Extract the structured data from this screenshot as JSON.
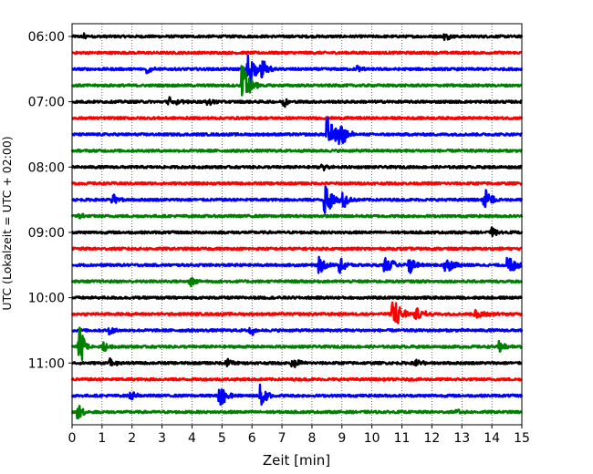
{
  "chart_data": {
    "type": "line",
    "title": "",
    "xlabel": "Zeit  [min]",
    "ylabel": "UTC (Lokalzeit = UTC + 02:00)",
    "xlim": [
      0,
      15
    ],
    "x_ticks": [
      0,
      1,
      2,
      3,
      4,
      5,
      6,
      7,
      8,
      9,
      10,
      11,
      12,
      13,
      14,
      15
    ],
    "grid": "vertical dotted lines at each minute",
    "row_minutes": 15,
    "y_tick_labels": [
      "06:00",
      "07:00",
      "08:00",
      "09:00",
      "10:00",
      "11:00"
    ],
    "color_cycle": [
      "#000000",
      "#ff0000",
      "#0000ff",
      "#008000"
    ],
    "rows": [
      {
        "start": "06:00",
        "color": "#000000",
        "events": [
          {
            "t": 0.45,
            "amp": 0.2,
            "dur": 0.2
          },
          {
            "t": 12.5,
            "amp": 0.2,
            "dur": 0.3
          }
        ]
      },
      {
        "start": "06:15",
        "color": "#ff0000",
        "events": []
      },
      {
        "start": "06:30",
        "color": "#0000ff",
        "events": [
          {
            "t": 2.5,
            "amp": 0.3,
            "dur": 0.4
          },
          {
            "t": 5.9,
            "amp": 1.2,
            "dur": 0.5
          },
          {
            "t": 6.4,
            "amp": 0.6,
            "dur": 0.4
          },
          {
            "t": 9.6,
            "amp": 0.2,
            "dur": 0.3
          }
        ]
      },
      {
        "start": "06:45",
        "color": "#008000",
        "events": [
          {
            "t": 5.75,
            "amp": 1.4,
            "dur": 0.5
          }
        ]
      },
      {
        "start": "07:00",
        "color": "#000000",
        "events": [
          {
            "t": 3.3,
            "amp": 0.3,
            "dur": 0.6
          },
          {
            "t": 7.1,
            "amp": 0.3,
            "dur": 0.3
          },
          {
            "t": 4.6,
            "amp": 0.2,
            "dur": 0.4
          }
        ]
      },
      {
        "start": "07:15",
        "color": "#ff0000",
        "events": []
      },
      {
        "start": "07:30",
        "color": "#0000ff",
        "events": [
          {
            "t": 8.55,
            "amp": 1.2,
            "dur": 0.6
          },
          {
            "t": 9.0,
            "amp": 0.6,
            "dur": 0.6
          }
        ]
      },
      {
        "start": "07:45",
        "color": "#008000",
        "events": []
      },
      {
        "start": "08:00",
        "color": "#000000",
        "events": [
          {
            "t": 8.4,
            "amp": 0.2,
            "dur": 0.5
          }
        ]
      },
      {
        "start": "08:15",
        "color": "#ff0000",
        "events": []
      },
      {
        "start": "08:30",
        "color": "#0000ff",
        "events": [
          {
            "t": 1.4,
            "amp": 0.3,
            "dur": 0.5
          },
          {
            "t": 8.5,
            "amp": 1.0,
            "dur": 0.6
          },
          {
            "t": 9.1,
            "amp": 0.5,
            "dur": 0.4
          },
          {
            "t": 13.8,
            "amp": 0.7,
            "dur": 0.5
          }
        ]
      },
      {
        "start": "08:45",
        "color": "#008000",
        "events": [
          {
            "t": 0.3,
            "amp": 0.2,
            "dur": 0.3
          }
        ]
      },
      {
        "start": "09:00",
        "color": "#000000",
        "events": [
          {
            "t": 14.05,
            "amp": 0.3,
            "dur": 0.3
          }
        ]
      },
      {
        "start": "09:15",
        "color": "#ff0000",
        "events": []
      },
      {
        "start": "09:30",
        "color": "#0000ff",
        "events": [
          {
            "t": 8.3,
            "amp": 0.5,
            "dur": 0.4
          },
          {
            "t": 9.0,
            "amp": 0.5,
            "dur": 0.4
          },
          {
            "t": 10.5,
            "amp": 0.5,
            "dur": 0.6
          },
          {
            "t": 11.3,
            "amp": 0.5,
            "dur": 0.5
          },
          {
            "t": 12.5,
            "amp": 0.5,
            "dur": 0.6
          },
          {
            "t": 14.6,
            "amp": 0.6,
            "dur": 0.6
          }
        ]
      },
      {
        "start": "09:45",
        "color": "#008000",
        "events": [
          {
            "t": 4.0,
            "amp": 0.3,
            "dur": 0.6
          }
        ]
      },
      {
        "start": "10:00",
        "color": "#000000",
        "events": []
      },
      {
        "start": "10:15",
        "color": "#ff0000",
        "events": [
          {
            "t": 10.75,
            "amp": 1.1,
            "dur": 0.6
          },
          {
            "t": 11.5,
            "amp": 0.4,
            "dur": 0.6
          },
          {
            "t": 13.5,
            "amp": 0.3,
            "dur": 0.8
          }
        ]
      },
      {
        "start": "10:30",
        "color": "#0000ff",
        "events": [
          {
            "t": 1.3,
            "amp": 0.3,
            "dur": 0.3
          },
          {
            "t": 6.0,
            "amp": 0.3,
            "dur": 0.4
          }
        ]
      },
      {
        "start": "10:45",
        "color": "#008000",
        "events": [
          {
            "t": 0.3,
            "amp": 1.3,
            "dur": 0.3
          },
          {
            "t": 1.1,
            "amp": 0.3,
            "dur": 0.3
          },
          {
            "t": 14.3,
            "amp": 0.4,
            "dur": 0.4
          }
        ]
      },
      {
        "start": "11:00",
        "color": "#000000",
        "events": [
          {
            "t": 1.3,
            "amp": 0.3,
            "dur": 0.4
          },
          {
            "t": 5.2,
            "amp": 0.3,
            "dur": 0.6
          },
          {
            "t": 7.4,
            "amp": 0.3,
            "dur": 0.5
          },
          {
            "t": 11.5,
            "amp": 0.2,
            "dur": 0.5
          }
        ]
      },
      {
        "start": "11:15",
        "color": "#ff0000",
        "events": []
      },
      {
        "start": "11:30",
        "color": "#0000ff",
        "events": [
          {
            "t": 4.95,
            "amp": 0.9,
            "dur": 0.4
          },
          {
            "t": 6.35,
            "amp": 0.8,
            "dur": 0.4
          },
          {
            "t": 2.0,
            "amp": 0.3,
            "dur": 0.3
          }
        ]
      },
      {
        "start": "11:45",
        "color": "#008000",
        "events": [
          {
            "t": 0.25,
            "amp": 0.5,
            "dur": 0.4
          },
          {
            "t": 12.9,
            "amp": 0.2,
            "dur": 0.3
          }
        ]
      }
    ]
  }
}
